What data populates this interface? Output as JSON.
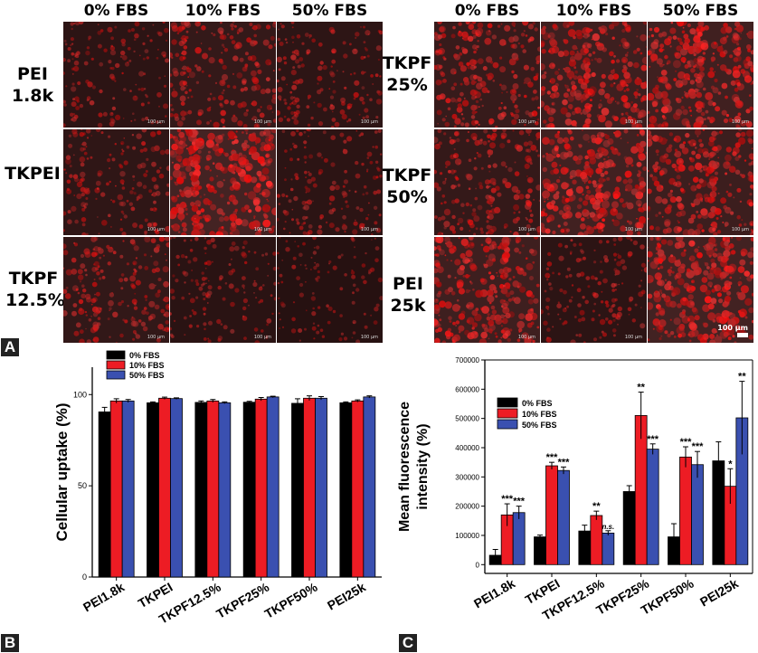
{
  "panel_a": {
    "label": "A",
    "left_group": {
      "columns": [
        "0% FBS",
        "10% FBS",
        "50% FBS"
      ],
      "rows": [
        {
          "label_lines": [
            "PEI",
            "1.8k"
          ],
          "intensity": [
            0.35,
            0.55,
            0.38
          ]
        },
        {
          "label_lines": [
            "TKPEI"
          ],
          "intensity": [
            0.42,
            0.95,
            0.35
          ]
        },
        {
          "label_lines": [
            "TKPF",
            "12.5%"
          ],
          "intensity": [
            0.5,
            0.3,
            0.2
          ]
        }
      ]
    },
    "right_group": {
      "columns": [
        "0% FBS",
        "10% FBS",
        "50% FBS"
      ],
      "rows": [
        {
          "label_lines": [
            "TKPF",
            "25%"
          ],
          "intensity": [
            0.62,
            0.8,
            0.85
          ]
        },
        {
          "label_lines": [
            "TKPF",
            "50%"
          ],
          "intensity": [
            0.55,
            0.88,
            0.75
          ]
        },
        {
          "label_lines": [
            "PEI",
            "25k"
          ],
          "intensity": [
            0.8,
            0.35,
            0.9
          ]
        }
      ]
    },
    "scale_bar_small": "100 µm",
    "scale_bar_large": "100 µm",
    "colors": {
      "fluorescence": "#ff1a1a",
      "background": "#1a1414"
    }
  },
  "chart_data": [
    {
      "panel": "B",
      "type": "bar",
      "categories": [
        "PEI1.8k",
        "TKPEI",
        "TKPF12.5%",
        "TKPF25%",
        "TKPF50%",
        "PEI25k"
      ],
      "series": [
        {
          "name": "0% FBS",
          "color": "#000000",
          "values": [
            90.5,
            95.5,
            95.7,
            95.8,
            95.2,
            95.5
          ],
          "errors": [
            2.5,
            0.5,
            0.8,
            0.5,
            2.5,
            0.5
          ]
        },
        {
          "name": "10% FBS",
          "color": "#ed1c24",
          "values": [
            96.5,
            98.0,
            96.5,
            97.5,
            98.0,
            96.5
          ],
          "errors": [
            1.2,
            0.6,
            0.8,
            0.9,
            1.3,
            0.6
          ]
        },
        {
          "name": "50% FBS",
          "color": "#3a50b0",
          "values": [
            96.5,
            97.8,
            95.5,
            98.7,
            98.0,
            98.7
          ],
          "errors": [
            0.8,
            0.4,
            0.5,
            0.4,
            0.9,
            0.6
          ]
        }
      ],
      "ylabel": "Cellular uptake (%)",
      "xlabel": "",
      "ylim": [
        0,
        115
      ],
      "yticks": [
        0,
        50,
        100
      ],
      "legend_position": "top-left",
      "annotations": []
    },
    {
      "panel": "C",
      "type": "bar",
      "categories": [
        "PEI1.8k",
        "TKPEI",
        "TKPF12.5%",
        "TKPF25%",
        "TKPF50%",
        "PEI25k"
      ],
      "series": [
        {
          "name": "0% FBS",
          "color": "#000000",
          "values": [
            32000,
            95000,
            115000,
            250000,
            95000,
            355000
          ],
          "errors": [
            20000,
            6000,
            20000,
            20000,
            45000,
            65000
          ]
        },
        {
          "name": "10% FBS",
          "color": "#ed1c24",
          "values": [
            170000,
            338000,
            168000,
            510000,
            368000,
            268000
          ],
          "errors": [
            38000,
            12000,
            15000,
            80000,
            35000,
            60000
          ]
        },
        {
          "name": "50% FBS",
          "color": "#3a50b0",
          "values": [
            178000,
            322000,
            108000,
            395000,
            342000,
            502000
          ],
          "errors": [
            22000,
            12000,
            8000,
            18000,
            45000,
            125000
          ]
        }
      ],
      "ylabel": "Mean fluorescence intensity (%)",
      "ylabel_lines": [
        "Mean fluorescence",
        "intensity (%)"
      ],
      "xlabel": "",
      "ylim": [
        -30000,
        700000
      ],
      "yticks": [
        0,
        100000,
        200000,
        300000,
        400000,
        500000,
        600000,
        700000
      ],
      "legend_position": "top-left",
      "annotations": [
        {
          "category": 0,
          "series": 1,
          "text": "***"
        },
        {
          "category": 0,
          "series": 2,
          "text": "***"
        },
        {
          "category": 1,
          "series": 1,
          "text": "***"
        },
        {
          "category": 1,
          "series": 2,
          "text": "***"
        },
        {
          "category": 2,
          "series": 1,
          "text": "**"
        },
        {
          "category": 2,
          "series": 2,
          "text": "n.s."
        },
        {
          "category": 3,
          "series": 1,
          "text": "**"
        },
        {
          "category": 3,
          "series": 2,
          "text": "***"
        },
        {
          "category": 4,
          "series": 1,
          "text": "***"
        },
        {
          "category": 4,
          "series": 2,
          "text": "***"
        },
        {
          "category": 5,
          "series": 1,
          "text": "*"
        },
        {
          "category": 5,
          "series": 2,
          "text": "**"
        }
      ]
    }
  ],
  "labels": {
    "b": "B",
    "c": "C"
  }
}
